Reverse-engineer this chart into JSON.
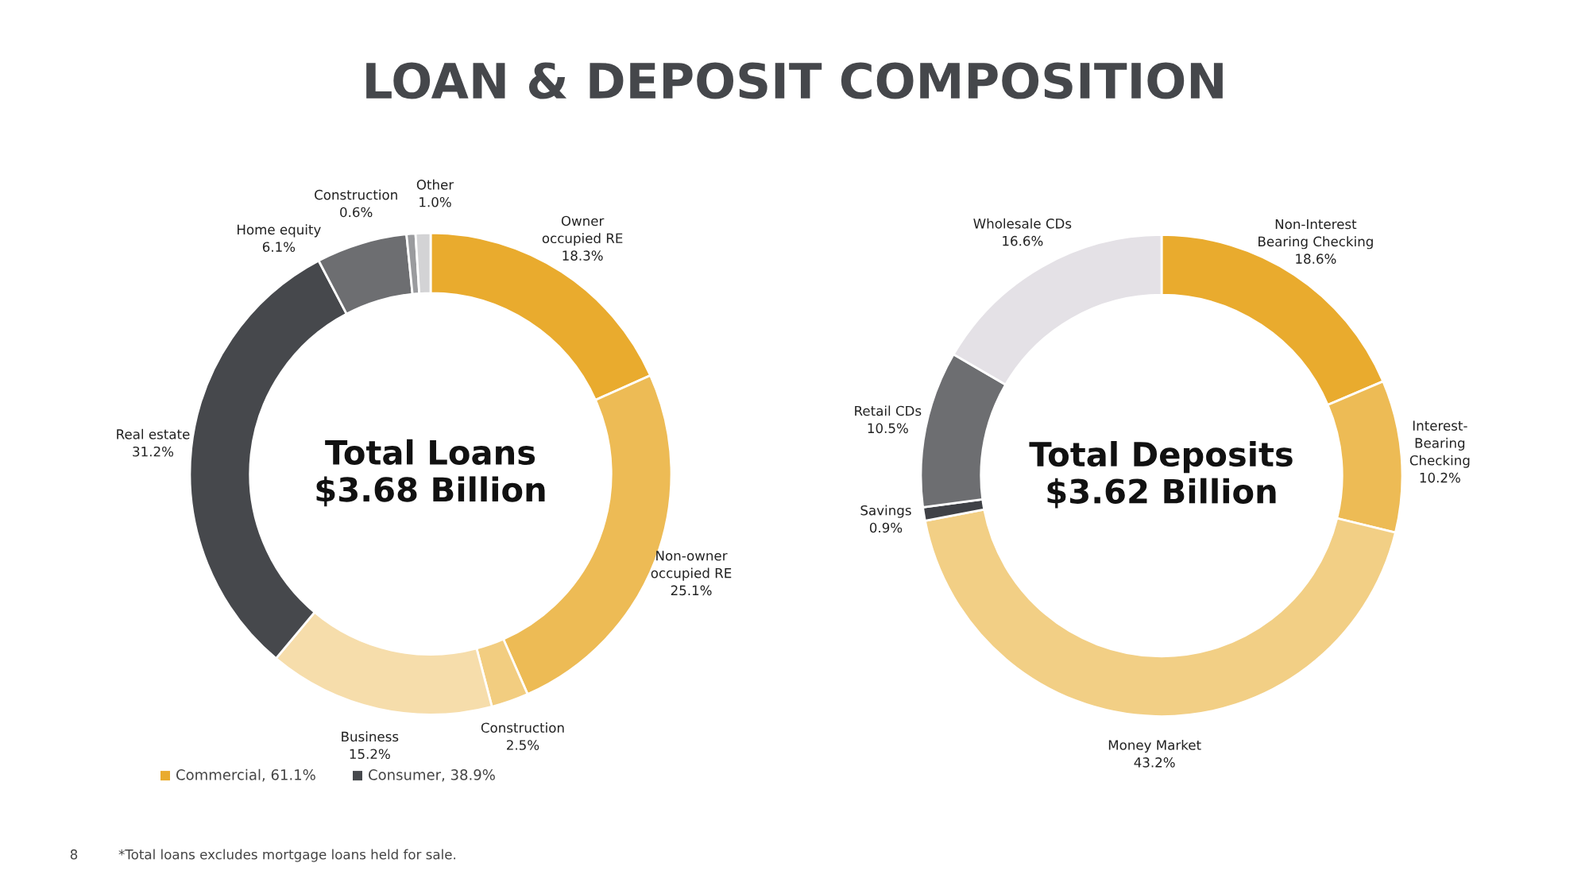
{
  "chart_data": [
    {
      "type": "donut",
      "title": "LOAN & DEPOSIT COMPOSITION",
      "categories": [
        "Owner\noccupied RE",
        "Non-owner\noccupied RE",
        "Construction",
        "Business",
        "Real estate",
        "Home equity",
        "Construction",
        "Other"
      ],
      "values": [
        18.3,
        25.1,
        2.5,
        15.2,
        31.2,
        6.1,
        0.6,
        1.0
      ],
      "value_labels": [
        "18.3%",
        "25.1%",
        "2.5%",
        "15.2%",
        "31.2%",
        "6.1%",
        "0.6%",
        "1.0%"
      ],
      "colors": [
        "#e9ab2e",
        "#edbb55",
        "#f2cd80",
        "#f6ddab",
        "#46484c",
        "#6d6e71",
        "#9a9b9e",
        "#d3d3d5"
      ],
      "annotations": [
        "Total Loans\n$3.68 Billion",
        "Commercial, 61.1%",
        "Consumer, 38.9%",
        "8",
        "*Total loans excludes mortgage loans held for sale."
      ]
    },
    {
      "type": "donut",
      "categories": [
        "Non-Interest\nBearing Checking",
        "Interest-\nBearing\nChecking",
        "Money Market",
        "Savings",
        "Retail CDs",
        "Wholesale CDs"
      ],
      "values": [
        18.6,
        10.2,
        43.2,
        0.9,
        10.5,
        16.6
      ],
      "value_labels": [
        "18.6%",
        "10.2%",
        "43.2%",
        "0.9%",
        "10.5%",
        "16.6%"
      ],
      "colors": [
        "#e9ab2e",
        "#edbb55",
        "#f2cf85",
        "#3f4146",
        "#6d6e71",
        "#e4e1e6"
      ],
      "annotations": [
        "Total Deposits\n$3.62 Billion"
      ]
    }
  ]
}
